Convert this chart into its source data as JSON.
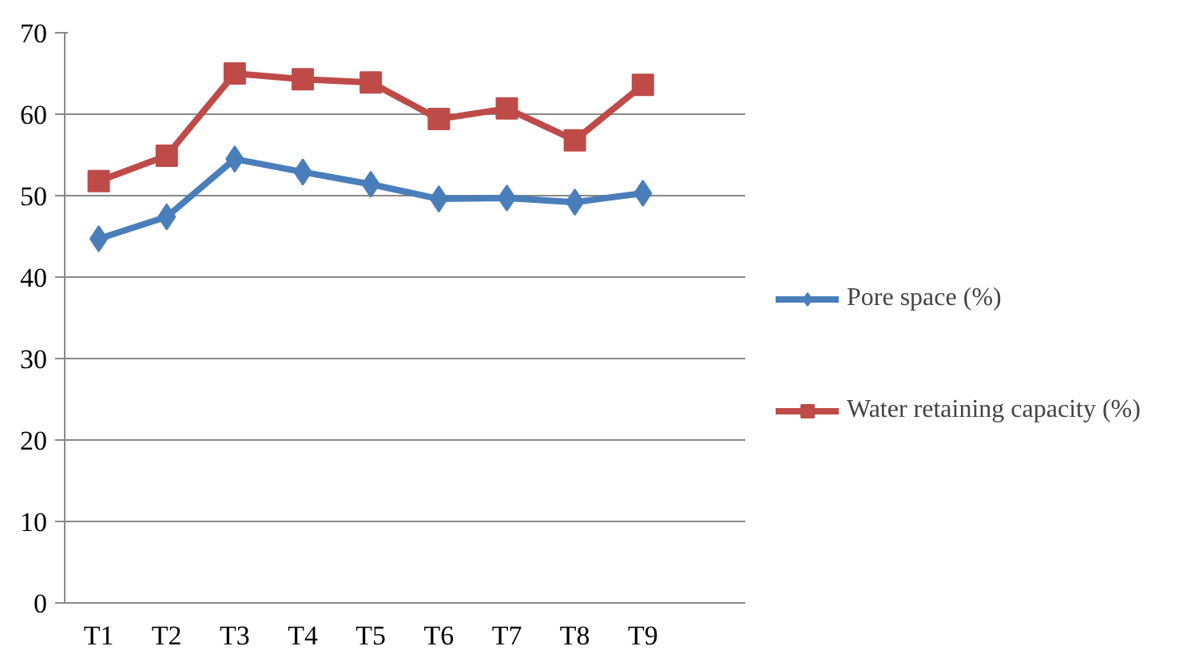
{
  "chart_data": {
    "type": "line",
    "categories": [
      "T1",
      "T2",
      "T3",
      "T4",
      "T5",
      "T6",
      "T7",
      "T8",
      "T9",
      null
    ],
    "series": [
      {
        "name": "Pore space (%)",
        "color": "#4a7ebb",
        "values": [
          44.7,
          47.4,
          54.5,
          52.9,
          51.4,
          49.6,
          49.7,
          49.2,
          50.3,
          null
        ],
        "marker": "diamond"
      },
      {
        "name": "Water retaining capacity (%)",
        "color": "#be4b48",
        "values": [
          51.8,
          54.9,
          65.0,
          64.3,
          63.9,
          59.4,
          60.7,
          56.8,
          63.6,
          null
        ],
        "marker": "square"
      }
    ],
    "ylim": [
      0,
      70
    ],
    "yticks": [
      0,
      10,
      20,
      30,
      40,
      50,
      60,
      70
    ],
    "grid": "y",
    "legend": "right"
  }
}
